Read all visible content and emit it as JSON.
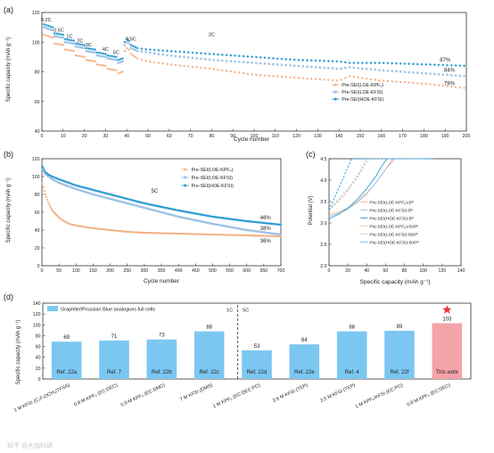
{
  "colors": {
    "orange": "#f4b183",
    "lightblue": "#9dc3e6",
    "blue": "#2e9bd6",
    "barBlue": "#7cc7f2",
    "barPink": "#f4a3a8",
    "star": "#e8383d"
  },
  "watermark": "知乎 @大咖科研",
  "chart_data": [
    {
      "type": "scatter",
      "panel_label": "(a)",
      "xlabel": "Cycle number",
      "ylabel": "Specific capacity (mAh g⁻¹)",
      "xlim": [
        0,
        200
      ],
      "ylim": [
        40,
        120
      ],
      "xticks": [
        0,
        10,
        20,
        30,
        40,
        50,
        60,
        70,
        80,
        90,
        100,
        110,
        120,
        130,
        140,
        150,
        160,
        170,
        180,
        190,
        200
      ],
      "yticks": [
        40,
        60,
        80,
        100,
        120
      ],
      "rate_labels": [
        "0.2C",
        "0.5C",
        "1C",
        "2C",
        "3C",
        "4C",
        "5C",
        "0.5C",
        "2C"
      ],
      "end_labels": [
        "87%",
        "84%",
        "79%"
      ],
      "legend": [
        "Pre-SEI(LOE-KPF₆)",
        "Pre-SEI(LOE-KFSI)",
        "Pre-SEI(HOE-KFSI)"
      ],
      "legend_position": "bottom-right",
      "series": [
        {
          "name": "Pre-SEI(LOE-KPF₆)",
          "color": "orange",
          "x": [
            1,
            5,
            6,
            10,
            11,
            15,
            16,
            20,
            21,
            25,
            26,
            30,
            31,
            35,
            36,
            38,
            39,
            40,
            41,
            42,
            45,
            50,
            60,
            80,
            100,
            120,
            140,
            145,
            160,
            180,
            200
          ],
          "y": [
            105,
            103,
            99,
            98,
            95,
            94,
            91,
            90,
            88,
            87,
            85,
            84,
            82,
            81,
            79,
            80,
            94,
            96,
            95,
            92,
            89,
            87,
            85,
            82,
            78,
            76,
            74,
            77,
            74,
            72,
            69
          ]
        },
        {
          "name": "Pre-SEI(LOE-KFSI)",
          "color": "lightblue",
          "x": [
            1,
            5,
            6,
            10,
            11,
            15,
            16,
            20,
            21,
            25,
            26,
            30,
            31,
            35,
            36,
            38,
            39,
            40,
            41,
            42,
            45,
            50,
            60,
            80,
            100,
            120,
            140,
            145,
            160,
            180,
            200
          ],
          "y": [
            110,
            108,
            104,
            103,
            100,
            99,
            97,
            96,
            94,
            93,
            91,
            90,
            89,
            88,
            86,
            87,
            98,
            100,
            99,
            96,
            94,
            93,
            91,
            88,
            86,
            84,
            82,
            83,
            81,
            79,
            77
          ]
        },
        {
          "name": "Pre-SEI(HOE-KFSI)",
          "color": "blue",
          "x": [
            1,
            5,
            6,
            10,
            11,
            15,
            16,
            20,
            21,
            25,
            26,
            30,
            31,
            35,
            36,
            38,
            39,
            40,
            41,
            42,
            45,
            50,
            60,
            80,
            100,
            120,
            140,
            145,
            160,
            180,
            200
          ],
          "y": [
            112,
            110,
            106,
            105,
            102,
            101,
            99,
            98,
            96,
            95,
            93,
            92,
            91,
            90,
            88,
            89,
            100,
            102,
            101,
            98,
            96,
            95,
            94,
            92,
            90,
            88,
            87,
            86,
            86,
            85,
            84
          ]
        }
      ]
    },
    {
      "type": "scatter",
      "panel_label": "(b)",
      "xlabel": "Cycle number",
      "ylabel": "Specific capacity (mAh g⁻¹)",
      "xlim": [
        0,
        700
      ],
      "ylim": [
        0,
        120
      ],
      "xticks": [
        0,
        50,
        100,
        150,
        200,
        250,
        300,
        350,
        400,
        450,
        500,
        550,
        600,
        650,
        700
      ],
      "yticks": [
        0,
        20,
        40,
        60,
        80,
        100,
        120
      ],
      "rate_label": "5C",
      "end_labels": [
        "46%",
        "38%",
        "36%"
      ],
      "legend": [
        "Pre-SEI(LOE-KPF₆)",
        "Pre-SEI(LOE-KFSI)",
        "Pre-SEI(HOE-KFSI)"
      ],
      "legend_position": "top-right",
      "series": [
        {
          "name": "Pre-SEI(LOE-KPF₆)",
          "color": "orange",
          "x": [
            1,
            10,
            20,
            30,
            40,
            50,
            60,
            80,
            100,
            150,
            200,
            250,
            300,
            400,
            500,
            600,
            700
          ],
          "y": [
            92,
            80,
            70,
            62,
            58,
            54,
            51,
            47,
            45,
            42,
            40,
            38,
            37,
            36,
            35,
            34,
            33
          ]
        },
        {
          "name": "Pre-SEI(LOE-KFSI)",
          "color": "lightblue",
          "x": [
            1,
            10,
            20,
            30,
            50,
            100,
            150,
            200,
            250,
            300,
            400,
            500,
            600,
            700
          ],
          "y": [
            108,
            103,
            100,
            97,
            93,
            86,
            80,
            75,
            70,
            65,
            55,
            47,
            40,
            35
          ]
        },
        {
          "name": "Pre-SEI(HOE-KFSI)",
          "color": "blue",
          "x": [
            1,
            10,
            20,
            30,
            50,
            100,
            150,
            200,
            250,
            300,
            400,
            500,
            600,
            700
          ],
          "y": [
            112,
            105,
            102,
            100,
            97,
            90,
            85,
            80,
            75,
            70,
            62,
            55,
            50,
            46
          ]
        }
      ]
    },
    {
      "type": "line",
      "panel_label": "(c)",
      "xlabel": "Specific capacity (mAh g⁻¹)",
      "ylabel": "Potential (V)",
      "xlim": [
        0,
        140
      ],
      "ylim": [
        2.0,
        4.5
      ],
      "xticks": [
        0,
        20,
        40,
        60,
        80,
        100,
        120,
        140
      ],
      "yticks": [
        2.0,
        2.5,
        3.0,
        3.5,
        4.0,
        4.5
      ],
      "legend": [
        "Pre-SEI(LOE-KPF₆)-5ᵗʰ",
        "Pre-SEI(LOE-KFSI)-5ᵗʰ",
        "Pre-SEI(HOE-KFSI)-5ᵗʰ",
        "Pre-SEI(LOE-KPF₆)-500ᵗʰ",
        "Pre-SEI(LOE-KFSI)-500ᵗʰ",
        "Pre-SEI(HOE-KFSI)-500ᵗʰ"
      ],
      "series": [
        {
          "name": "Pre-SEI(LOE-KPF₆)-5ᵗʰ",
          "color": "orange",
          "dash": false,
          "x": [
            0,
            10,
            20,
            30,
            40,
            50,
            60,
            66,
            68,
            110
          ],
          "y": [
            3.2,
            3.25,
            3.35,
            3.5,
            3.7,
            3.95,
            4.25,
            4.45,
            4.5,
            4.5
          ]
        },
        {
          "name": "Pre-SEI(LOE-KFSI)-5ᵗʰ",
          "color": "lightblue",
          "dash": false,
          "x": [
            0,
            10,
            20,
            30,
            40,
            50,
            60,
            68,
            70,
            110
          ],
          "y": [
            3.15,
            3.22,
            3.32,
            3.48,
            3.68,
            3.95,
            4.25,
            4.45,
            4.5,
            4.5
          ]
        },
        {
          "name": "Pre-SEI(HOE-KFSI)-5ᵗʰ",
          "color": "blue",
          "dash": false,
          "x": [
            0,
            10,
            20,
            30,
            40,
            50,
            55,
            60,
            62,
            110
          ],
          "y": [
            3.1,
            3.2,
            3.35,
            3.55,
            3.8,
            4.1,
            4.3,
            4.45,
            4.5,
            4.5
          ]
        },
        {
          "name": "Pre-SEI(LOE-KPF₆)-500ᵗʰ",
          "color": "orange",
          "dash": true,
          "x": [
            0,
            10,
            20,
            30,
            38,
            42,
            100
          ],
          "y": [
            3.3,
            3.5,
            3.75,
            4.05,
            4.35,
            4.5,
            4.5
          ]
        },
        {
          "name": "Pre-SEI(LOE-KFSI)-500ᵗʰ",
          "color": "lightblue",
          "dash": true,
          "x": [
            0,
            10,
            20,
            30,
            36,
            40,
            100
          ],
          "y": [
            3.3,
            3.55,
            3.8,
            4.1,
            4.35,
            4.5,
            4.5
          ]
        },
        {
          "name": "Pre-SEI(HOE-KFSI)-500ᵗʰ",
          "color": "blue",
          "dash": true,
          "x": [
            0,
            5,
            10,
            15,
            20,
            24,
            100
          ],
          "y": [
            3.3,
            3.55,
            3.8,
            4.05,
            4.3,
            4.5,
            4.5
          ]
        }
      ]
    },
    {
      "type": "bar",
      "panel_label": "(d)",
      "ylabel": "Specific capacity (mAh g⁻¹)",
      "ylim": [
        0,
        140
      ],
      "yticks": [
        0,
        20,
        40,
        60,
        80,
        100,
        120,
        140
      ],
      "legend": "Graphite//Prussian Blue analogues full cells",
      "rate_markers": [
        "1C",
        "5C"
      ],
      "categories": [
        "1 M KFSI (C₃F₇OCH₃/TFSA)",
        "0.8 M KPF₆ (EC:DEC)",
        "0.8 M KPF₆ (EC:DMC)",
        "7 M KFSI (DMS)",
        "1 M KPF₆ (EC:DEC:PC)",
        "2.6 M KFSI (TEP)",
        "2.5 M KFSI (TEP)",
        "1 M KPF₆/KFSI (EC:PC)",
        "0.8 M KPF₆ (EC:DEC)"
      ],
      "refs": [
        "Ref. 22a",
        "Ref. 7",
        "Ref. 22b",
        "Ref. 22c",
        "Ref. 22d",
        "Ref. 22e",
        "Ref. 4",
        "Ref. 22f",
        "This work"
      ],
      "values": [
        69,
        71,
        73,
        88,
        53,
        64,
        88,
        89,
        103
      ]
    }
  ]
}
